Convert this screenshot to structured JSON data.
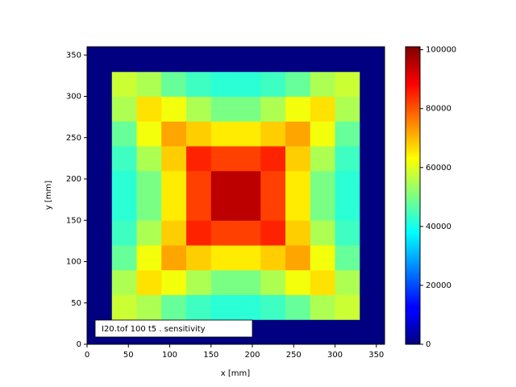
{
  "chart_data": {
    "type": "heatmap",
    "annotation": "I20.tof 100 t5 .  sensitivity",
    "xlabel": "x [mm]",
    "ylabel": "y [mm]",
    "colormap": "jet",
    "xbins": [
      0,
      30,
      60,
      90,
      120,
      150,
      180,
      210,
      240,
      270,
      300,
      330,
      360
    ],
    "ybins": [
      0,
      30,
      60,
      90,
      120,
      150,
      180,
      210,
      240,
      270,
      300,
      330,
      360
    ],
    "values": [
      [
        0,
        0,
        0,
        0,
        0,
        0,
        0,
        0,
        0,
        0,
        0,
        0
      ],
      [
        0,
        58000,
        55000,
        48000,
        44000,
        42000,
        42000,
        44000,
        48000,
        55000,
        58000,
        0
      ],
      [
        0,
        55000,
        66000,
        62000,
        55000,
        50000,
        50000,
        55000,
        62000,
        66000,
        55000,
        0
      ],
      [
        0,
        48000,
        62000,
        72000,
        68000,
        65000,
        65000,
        68000,
        72000,
        62000,
        48000,
        0
      ],
      [
        0,
        44000,
        55000,
        68000,
        85000,
        82000,
        82000,
        85000,
        68000,
        55000,
        44000,
        0
      ],
      [
        0,
        42000,
        50000,
        65000,
        82000,
        95000,
        95000,
        82000,
        65000,
        50000,
        42000,
        0
      ],
      [
        0,
        42000,
        50000,
        65000,
        82000,
        95000,
        95000,
        82000,
        65000,
        50000,
        42000,
        0
      ],
      [
        0,
        44000,
        55000,
        68000,
        85000,
        82000,
        82000,
        85000,
        68000,
        55000,
        44000,
        0
      ],
      [
        0,
        48000,
        62000,
        72000,
        68000,
        65000,
        65000,
        68000,
        72000,
        62000,
        48000,
        0
      ],
      [
        0,
        55000,
        66000,
        62000,
        55000,
        50000,
        50000,
        55000,
        62000,
        66000,
        55000,
        0
      ],
      [
        0,
        58000,
        55000,
        48000,
        44000,
        42000,
        42000,
        44000,
        48000,
        55000,
        58000,
        0
      ],
      [
        0,
        0,
        0,
        0,
        0,
        0,
        0,
        0,
        0,
        0,
        0,
        0
      ]
    ],
    "xlim": [
      0,
      360
    ],
    "ylim": [
      0,
      360
    ],
    "xticks": [
      0,
      50,
      100,
      150,
      200,
      250,
      300,
      350
    ],
    "yticks": [
      0,
      50,
      100,
      150,
      200,
      250,
      300,
      350
    ],
    "clim": [
      0,
      101000
    ],
    "cticks": [
      0,
      20000,
      40000,
      60000,
      80000,
      100000
    ]
  }
}
